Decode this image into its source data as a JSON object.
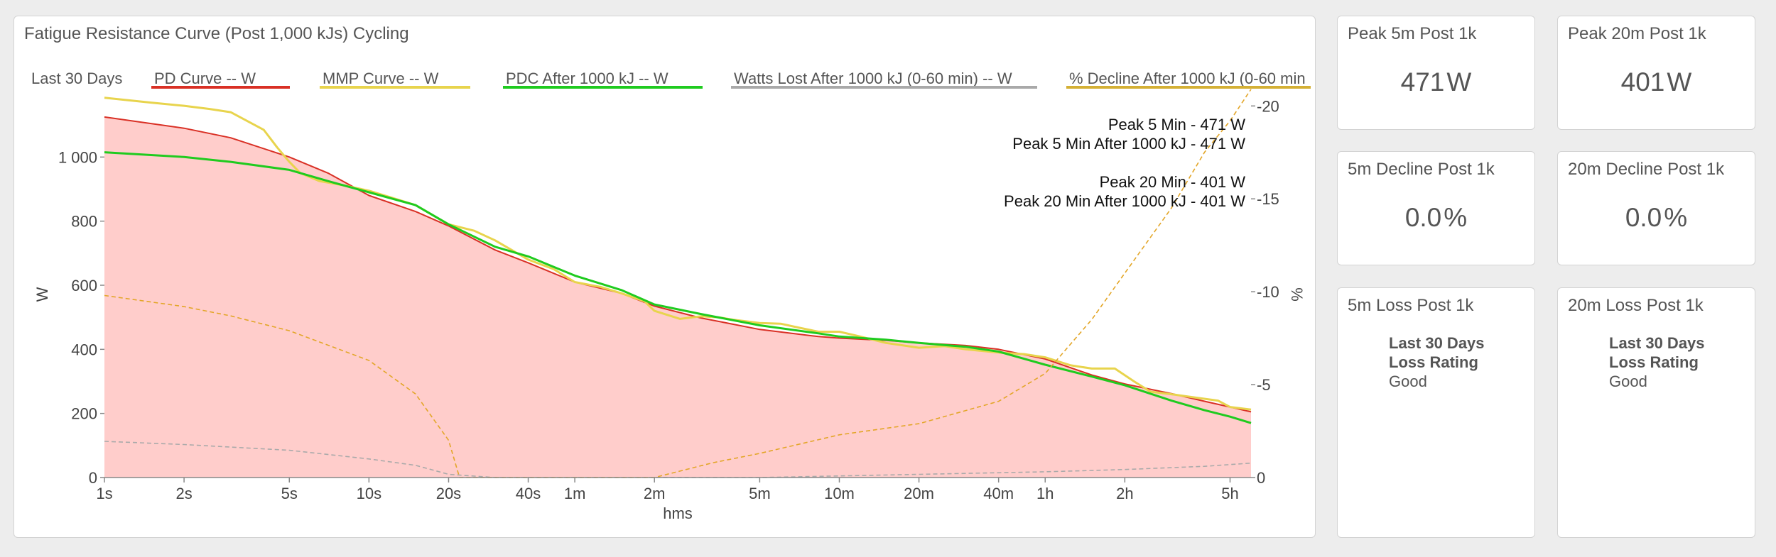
{
  "chart_panel": {
    "title": "Fatigue Resistance Curve (Post 1,000 kJs) Cycling"
  },
  "chart_data": {
    "type": "line",
    "title": "Fatigue Resistance Curve (Post 1,000 kJs) Cycling",
    "xlabel": "hms",
    "ylabel": "W",
    "y2label": "%",
    "x_scale": "log",
    "x_tick_labels": [
      "1s",
      "2s",
      "5s",
      "10s",
      "20s",
      "40s",
      "1m",
      "2m",
      "5m",
      "10m",
      "20m",
      "40m",
      "1h",
      "2h",
      "5h"
    ],
    "x_tick_seconds": [
      1,
      2,
      5,
      10,
      20,
      40,
      60,
      120,
      300,
      600,
      1200,
      2400,
      3600,
      7200,
      18000
    ],
    "xlim_seconds": [
      1,
      21600
    ],
    "ylim": [
      0,
      1200
    ],
    "y_ticks": [
      0,
      200,
      400,
      600,
      800,
      1000
    ],
    "y_tick_labels": [
      "0",
      "200",
      "400",
      "600",
      "800",
      "1 000"
    ],
    "y2_ticks": [
      0,
      -5,
      -10,
      -15,
      -20
    ],
    "y2lim": [
      0,
      -20.7
    ],
    "grid": false,
    "legend_position": "top",
    "legend": [
      {
        "label": "Last 30 Days",
        "color": ""
      },
      {
        "label": "PD Curve  -- W",
        "color": "#d93025"
      },
      {
        "label": "MMP Curve  -- W",
        "color": "#e8d44d"
      },
      {
        "label": "PDC After 1000 kJ  -- W",
        "color": "#1fcb1f"
      },
      {
        "label": "Watts Lost After 1000 kJ (0-60 min)  -- W",
        "color": "#a9a9a9"
      },
      {
        "label": "% Decline After 1000 kJ (0-60 min",
        "color": "#d4b035"
      }
    ],
    "annotations": [
      "Peak 5 Min - 471 W",
      "Peak 5 Min After 1000 kJ - 471 W",
      "Peak 20 Min - 401 W",
      "Peak 20 Min After 1000 kJ - 401 W"
    ],
    "series": [
      {
        "name": "PD Curve  -- W",
        "axis": "left",
        "color": "#d93025",
        "fill": "#ffcdcb",
        "points": [
          [
            1,
            1125
          ],
          [
            2,
            1090
          ],
          [
            3,
            1060
          ],
          [
            5,
            1000
          ],
          [
            7,
            950
          ],
          [
            10,
            880
          ],
          [
            15,
            830
          ],
          [
            20,
            785
          ],
          [
            30,
            710
          ],
          [
            40,
            670
          ],
          [
            60,
            610
          ],
          [
            90,
            575
          ],
          [
            120,
            535
          ],
          [
            180,
            498
          ],
          [
            300,
            462
          ],
          [
            500,
            440
          ],
          [
            600,
            435
          ],
          [
            900,
            428
          ],
          [
            1200,
            420
          ],
          [
            1800,
            412
          ],
          [
            2400,
            400
          ],
          [
            3600,
            370
          ],
          [
            5400,
            320
          ],
          [
            7200,
            292
          ],
          [
            10800,
            262
          ],
          [
            14400,
            238
          ],
          [
            18000,
            220
          ],
          [
            21600,
            205
          ]
        ]
      },
      {
        "name": "MMP Curve  -- W",
        "axis": "left",
        "color": "#e8d44d",
        "points": [
          [
            1,
            1185
          ],
          [
            1.5,
            1170
          ],
          [
            2,
            1160
          ],
          [
            2.5,
            1150
          ],
          [
            3,
            1140
          ],
          [
            4,
            1085
          ],
          [
            4.5,
            1030
          ],
          [
            5,
            985
          ],
          [
            5.5,
            950
          ],
          [
            6.5,
            925
          ],
          [
            8,
            912
          ],
          [
            10,
            895
          ],
          [
            12,
            875
          ],
          [
            15,
            850
          ],
          [
            20,
            790
          ],
          [
            25,
            770
          ],
          [
            30,
            740
          ],
          [
            40,
            680
          ],
          [
            50,
            650
          ],
          [
            60,
            610
          ],
          [
            75,
            595
          ],
          [
            90,
            575
          ],
          [
            110,
            550
          ],
          [
            120,
            520
          ],
          [
            150,
            495
          ],
          [
            180,
            503
          ],
          [
            210,
            500
          ],
          [
            240,
            492
          ],
          [
            300,
            482
          ],
          [
            360,
            480
          ],
          [
            420,
            468
          ],
          [
            500,
            455
          ],
          [
            600,
            455
          ],
          [
            720,
            440
          ],
          [
            900,
            420
          ],
          [
            1200,
            405
          ],
          [
            1500,
            410
          ],
          [
            1800,
            400
          ],
          [
            2400,
            390
          ],
          [
            3000,
            385
          ],
          [
            3600,
            375
          ],
          [
            4500,
            350
          ],
          [
            5400,
            340
          ],
          [
            6600,
            340
          ],
          [
            7800,
            300
          ],
          [
            9000,
            268
          ],
          [
            10800,
            260
          ],
          [
            13200,
            250
          ],
          [
            16200,
            240
          ],
          [
            18000,
            220
          ],
          [
            21600,
            212
          ]
        ]
      },
      {
        "name": "PDC After 1000 kJ  -- W",
        "axis": "left",
        "color": "#1fcb1f",
        "points": [
          [
            1,
            1015
          ],
          [
            2,
            1000
          ],
          [
            3,
            985
          ],
          [
            5,
            960
          ],
          [
            7,
            925
          ],
          [
            10,
            890
          ],
          [
            15,
            850
          ],
          [
            20,
            790
          ],
          [
            30,
            720
          ],
          [
            40,
            690
          ],
          [
            60,
            630
          ],
          [
            90,
            585
          ],
          [
            120,
            540
          ],
          [
            180,
            510
          ],
          [
            300,
            475
          ],
          [
            500,
            450
          ],
          [
            600,
            440
          ],
          [
            900,
            430
          ],
          [
            1200,
            420
          ],
          [
            1800,
            408
          ],
          [
            2400,
            393
          ],
          [
            3600,
            352
          ],
          [
            5400,
            315
          ],
          [
            7200,
            288
          ],
          [
            10800,
            240
          ],
          [
            14400,
            210
          ],
          [
            18000,
            190
          ],
          [
            21600,
            170
          ]
        ]
      },
      {
        "name": "Watts Lost After 1000 kJ (0-60 min)  -- W",
        "axis": "left",
        "color": "#aaaaaa",
        "dashed": true,
        "points": [
          [
            1,
            113
          ],
          [
            2,
            103
          ],
          [
            5,
            85
          ],
          [
            10,
            58
          ],
          [
            15,
            38
          ],
          [
            20,
            10
          ],
          [
            30,
            0
          ],
          [
            300,
            0
          ],
          [
            1200,
            10
          ],
          [
            3600,
            18
          ],
          [
            7200,
            25
          ],
          [
            14400,
            35
          ],
          [
            21600,
            45
          ]
        ]
      },
      {
        "name": "% Decline After 1000 kJ (0-60 min",
        "axis": "right",
        "color": "#e3a628",
        "dashed": true,
        "points": [
          [
            1,
            -9.8
          ],
          [
            2,
            -9.2
          ],
          [
            3,
            -8.7
          ],
          [
            5,
            -7.9
          ],
          [
            10,
            -6.3
          ],
          [
            15,
            -4.5
          ],
          [
            20,
            -2
          ],
          [
            22,
            0
          ],
          [
            120,
            0
          ],
          [
            200,
            -0.8
          ],
          [
            300,
            -1.3
          ],
          [
            600,
            -2.3
          ],
          [
            1200,
            -2.9
          ],
          [
            2400,
            -4.1
          ],
          [
            3600,
            -5.6
          ],
          [
            5400,
            -8.5
          ],
          [
            7200,
            -11
          ],
          [
            10800,
            -14.5
          ],
          [
            14400,
            -17.5
          ],
          [
            18000,
            -19.2
          ],
          [
            21600,
            -20.9
          ]
        ]
      }
    ]
  },
  "cards": {
    "peak5": {
      "title": "Peak 5m Post 1k",
      "value": "471",
      "unit": "W"
    },
    "peak20": {
      "title": "Peak 20m Post 1k",
      "value": "401",
      "unit": "W"
    },
    "decline5": {
      "title": "5m Decline Post 1k",
      "value": "0.0",
      "unit": "%"
    },
    "decline20": {
      "title": "20m Decline Post 1k",
      "value": "0.0",
      "unit": "%"
    },
    "loss5": {
      "title": "5m Loss Post 1k",
      "rating_line1": "Last 30 Days",
      "rating_line2": "Loss Rating",
      "rating_value": "Good"
    },
    "loss20": {
      "title": "20m Loss Post 1k",
      "rating_line1": "Last 30 Days",
      "rating_line2": "Loss Rating",
      "rating_value": "Good"
    }
  }
}
